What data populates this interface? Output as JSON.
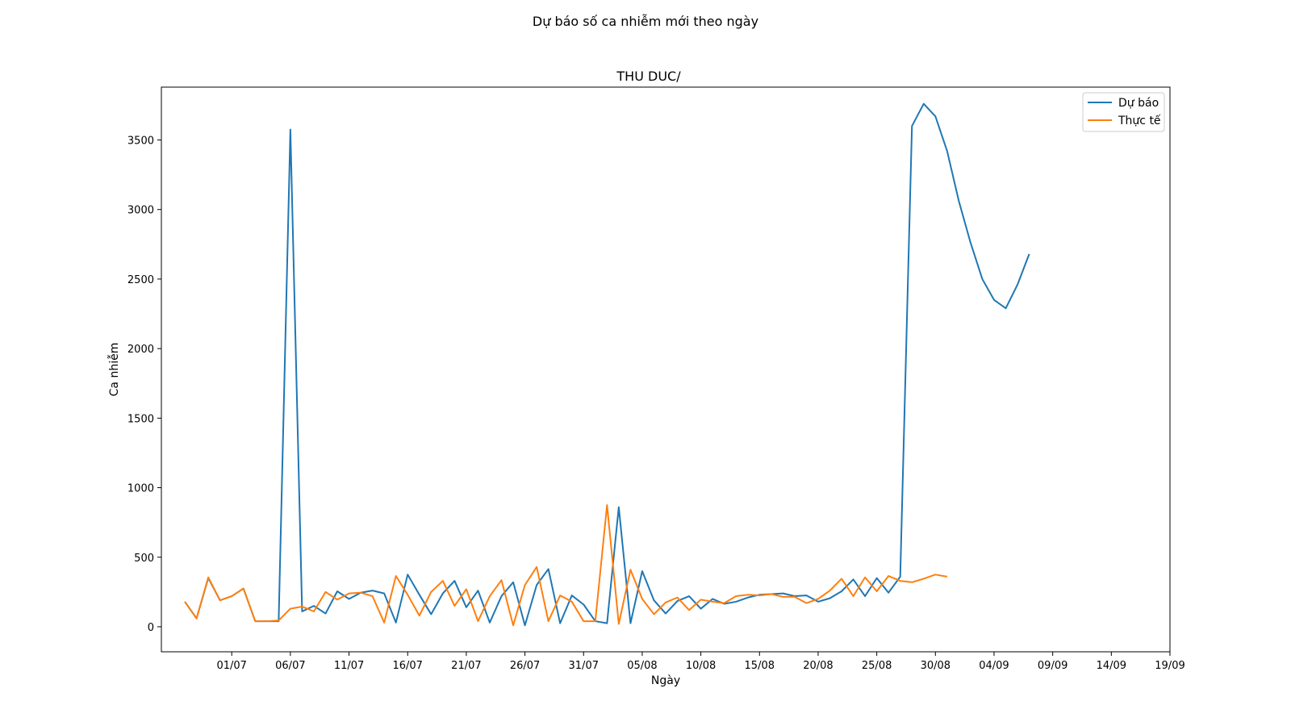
{
  "figure": {
    "suptitle": "Dự báo số ca nhiễm mới theo ngày"
  },
  "chart_data": {
    "type": "line",
    "title": "THU DUC/",
    "xlabel": "Ngày",
    "ylabel": "Ca nhiễm",
    "x_start_date": "2021-06-27",
    "xlim": [
      "2021-06-25",
      "2021-09-19"
    ],
    "ylim": [
      -180,
      3880
    ],
    "x_tick_labels": [
      "01/07",
      "06/07",
      "11/07",
      "16/07",
      "21/07",
      "26/07",
      "31/07",
      "05/08",
      "10/08",
      "15/08",
      "20/08",
      "25/08",
      "30/08",
      "04/09",
      "09/09",
      "14/09",
      "19/09"
    ],
    "x_tick_dates": [
      "2021-07-01",
      "2021-07-06",
      "2021-07-11",
      "2021-07-16",
      "2021-07-21",
      "2021-07-26",
      "2021-07-31",
      "2021-08-05",
      "2021-08-10",
      "2021-08-15",
      "2021-08-20",
      "2021-08-25",
      "2021-08-30",
      "2021-09-04",
      "2021-09-09",
      "2021-09-14",
      "2021-09-19"
    ],
    "y_ticks": [
      0,
      500,
      1000,
      1500,
      2000,
      2500,
      3000,
      3500
    ],
    "grid": false,
    "legend_position": "top-right",
    "series": [
      {
        "name": "Dự báo",
        "color": "#1f77b4",
        "values": [
          180,
          60,
          350,
          190,
          220,
          275,
          40,
          40,
          40,
          3575,
          110,
          150,
          95,
          255,
          200,
          245,
          260,
          240,
          30,
          375,
          230,
          90,
          240,
          330,
          140,
          260,
          30,
          220,
          320,
          10,
          300,
          415,
          25,
          225,
          160,
          40,
          25,
          860,
          25,
          400,
          190,
          95,
          185,
          220,
          130,
          200,
          165,
          180,
          210,
          230,
          235,
          240,
          220,
          225,
          180,
          205,
          255,
          340,
          220,
          350,
          245,
          360,
          3600,
          3760,
          3670,
          3420,
          3060,
          2760,
          2500,
          2350,
          2290,
          2460,
          2680
        ]
      },
      {
        "name": "Thực tế",
        "color": "#ff7f0e",
        "values": [
          180,
          60,
          355,
          190,
          220,
          275,
          40,
          40,
          45,
          130,
          145,
          110,
          250,
          195,
          240,
          245,
          220,
          30,
          365,
          230,
          80,
          250,
          330,
          150,
          270,
          40,
          220,
          335,
          10,
          300,
          430,
          40,
          225,
          180,
          40,
          40,
          875,
          20,
          410,
          200,
          90,
          175,
          210,
          120,
          195,
          180,
          170,
          220,
          230,
          225,
          235,
          215,
          215,
          170,
          200,
          260,
          345,
          220,
          355,
          255,
          365,
          330,
          320,
          345,
          375,
          360
        ]
      }
    ]
  }
}
